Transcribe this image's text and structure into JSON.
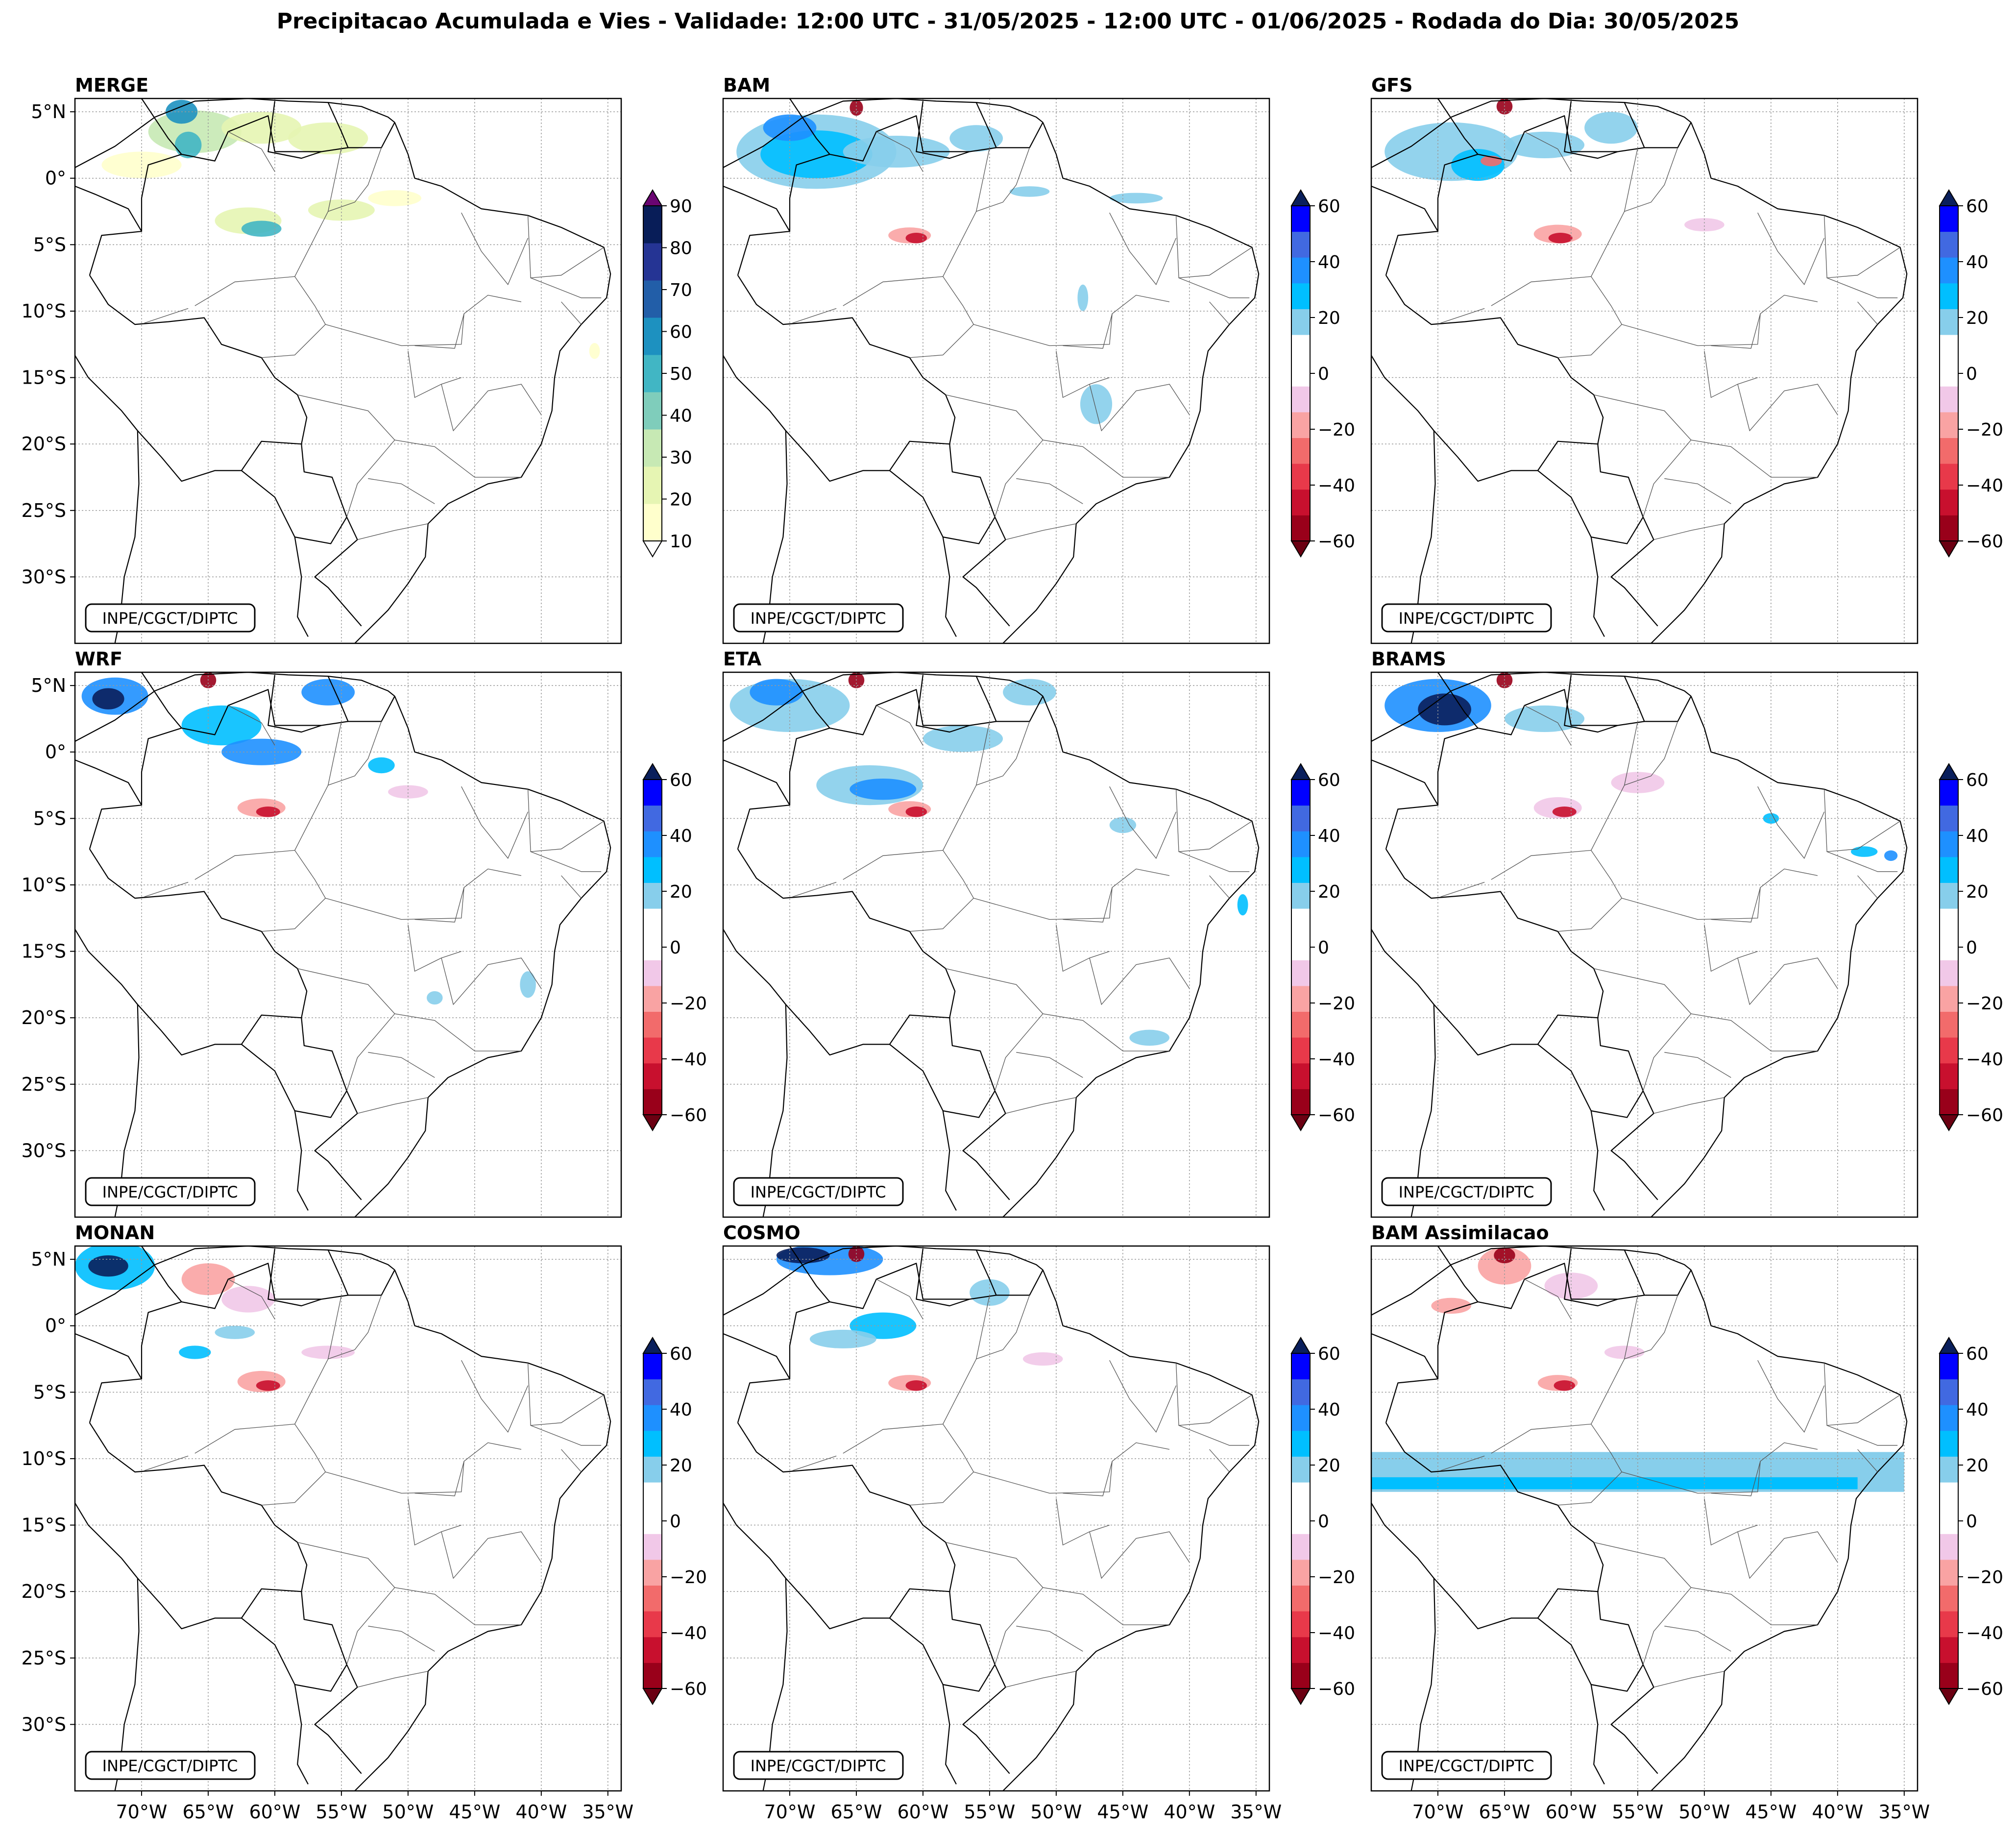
{
  "title": "Precipitacao Acumulada e Vies - Validade: 12:00 UTC - 31/05/2025 - 12:00 UTC - 01/06/2025 - Rodada do Dia: 30/05/2025",
  "credit": "INPE/CGCT/DIPTC",
  "lat_ticks": [
    "5°N",
    "0°",
    "5°S",
    "10°S",
    "15°S",
    "20°S",
    "25°S",
    "30°S"
  ],
  "lon_ticks": [
    "70°W",
    "65°W",
    "60°W",
    "55°W",
    "50°W",
    "45°W",
    "40°W",
    "35°W"
  ],
  "colorbars": {
    "precip": {
      "ticks": [
        "90",
        "80",
        "70",
        "60",
        "50",
        "40",
        "30",
        "20",
        "10"
      ],
      "colors": [
        "#ffffcc",
        "#e6f5b3",
        "#c7e9b4",
        "#7fcdbb",
        "#41b6c4",
        "#1d91c0",
        "#225ea8",
        "#253494",
        "#081d58"
      ],
      "over_color": "#6a0572",
      "under_color": "#ffffff"
    },
    "bias": {
      "ticks": [
        "60",
        "40",
        "20",
        "0",
        "−20",
        "−40",
        "−60"
      ],
      "colors": [
        "#99001a",
        "#c8102e",
        "#e8394a",
        "#f26b6b",
        "#f9a3a3",
        "#f1c8e8",
        "#ffffff",
        "#ffffff",
        "#87ceeb",
        "#00bfff",
        "#1e90ff",
        "#4169e1",
        "#0000ff"
      ],
      "over_color": "#0a1f5c",
      "under_color": "#6b0012"
    }
  },
  "panels": [
    {
      "id": "merge",
      "label": "MERGE",
      "type": "precip"
    },
    {
      "id": "bam",
      "label": "BAM",
      "type": "bias"
    },
    {
      "id": "gfs",
      "label": "GFS",
      "type": "bias"
    },
    {
      "id": "wrf",
      "label": "WRF",
      "type": "bias"
    },
    {
      "id": "eta",
      "label": "ETA",
      "type": "bias"
    },
    {
      "id": "brams",
      "label": "BRAMS",
      "type": "bias"
    },
    {
      "id": "monan",
      "label": "MONAN",
      "type": "bias"
    },
    {
      "id": "cosmo",
      "label": "COSMO",
      "type": "bias"
    },
    {
      "id": "bam-assim",
      "label": "BAM Assimilacao",
      "type": "bias"
    }
  ]
}
